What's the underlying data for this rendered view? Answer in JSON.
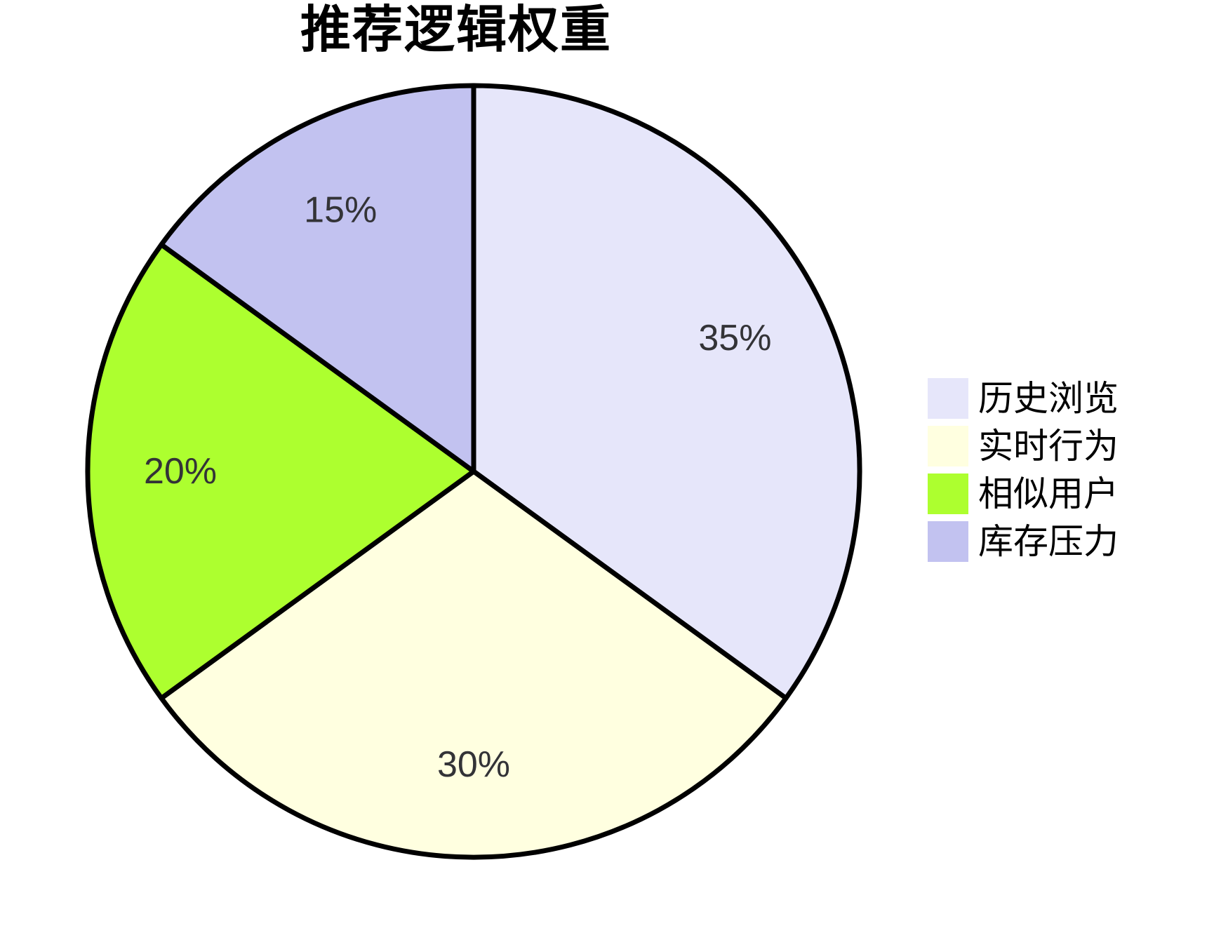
{
  "title": "推荐逻辑权重",
  "chart_data": {
    "type": "pie",
    "title": "推荐逻辑权重",
    "labels": [
      "历史浏览",
      "实时行为",
      "相似用户",
      "库存压力"
    ],
    "values": [
      35,
      30,
      20,
      15
    ],
    "percent_labels": [
      "35%",
      "30%",
      "20%",
      "15%"
    ],
    "colors": [
      "#E6E6FA",
      "#FFFFE0",
      "#ADFF2F",
      "#C2C2F0"
    ],
    "edge_color": "#000000",
    "label_color": "#333337",
    "start_angle_deg": 90,
    "direction": "clockwise",
    "legend_position": "right",
    "grid": "off"
  }
}
